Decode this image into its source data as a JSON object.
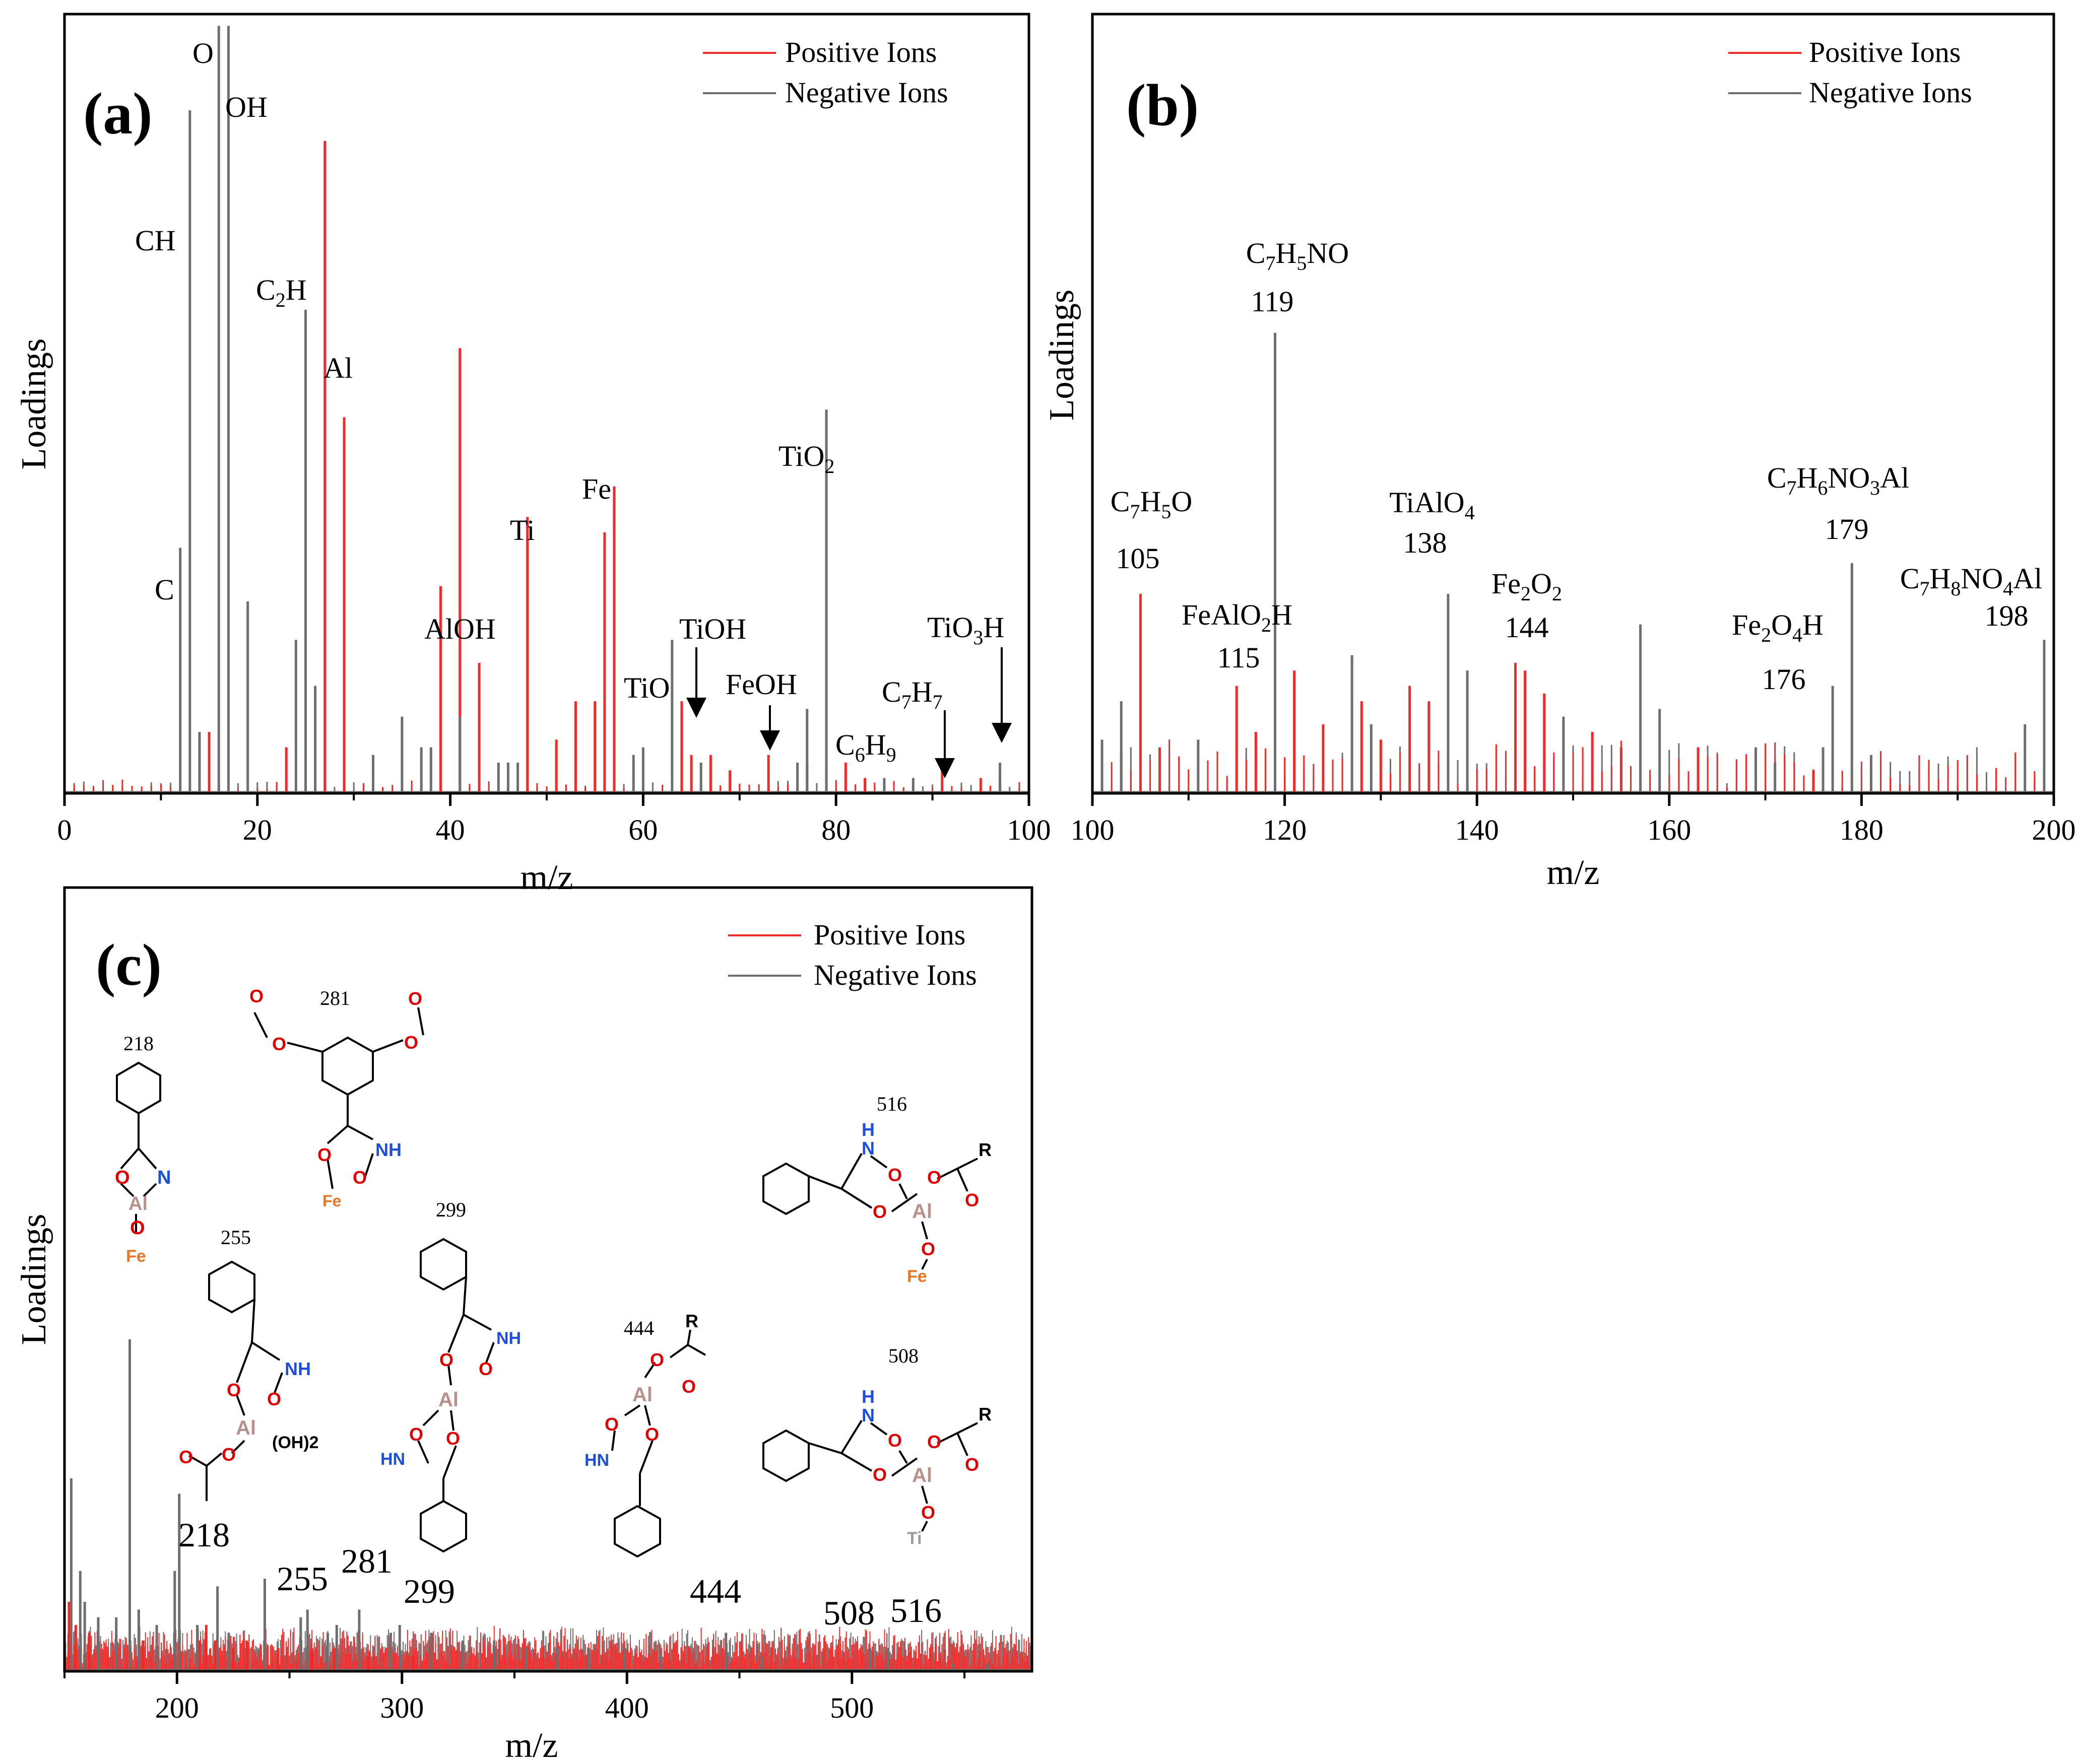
{
  "colors": {
    "positive": "#ee2b2b",
    "negative": "#6e6e6e",
    "axis": "#000000",
    "oxygen": "#e00000",
    "nitrogen": "#1f4fd8",
    "aluminium": "#b8918c",
    "iron": "#e67628",
    "titanium": "#9a9a9a"
  },
  "chart_data": [
    {
      "panel": "(a)",
      "type": "line",
      "xlabel": "m/z",
      "ylabel": "Loadings",
      "xlim": [
        0,
        100
      ],
      "ylim": [
        0,
        1.0
      ],
      "xticks": [
        "0",
        "20",
        "40",
        "60",
        "80",
        "100"
      ],
      "legend": {
        "position": "top-right",
        "entries": [
          "Positive Ions",
          "Negative Ions"
        ]
      },
      "series": [
        {
          "name": "Positive Ions",
          "x": [
            15,
            23,
            27,
            29,
            39,
            41,
            43,
            48,
            51,
            53,
            55,
            56,
            57,
            64,
            65,
            67,
            69,
            73,
            77,
            79,
            81,
            83,
            91,
            95,
            97
          ],
          "y": [
            0.08,
            0.06,
            0.85,
            0.49,
            0.27,
            0.58,
            0.17,
            0.36,
            0.07,
            0.12,
            0.12,
            0.34,
            0.4,
            0.12,
            0.05,
            0.05,
            0.03,
            0.05,
            0.04,
            0.04,
            0.04,
            0.02,
            0.03,
            0.02,
            0.02
          ]
        },
        {
          "name": "Negative Ions",
          "x": [
            12,
            13,
            14,
            16,
            17,
            19,
            24,
            25,
            26,
            32,
            35,
            37,
            38,
            41,
            45,
            46,
            47,
            59,
            60,
            63,
            66,
            76,
            77,
            79,
            85,
            88,
            97
          ],
          "y": [
            0.32,
            0.89,
            0.08,
            1.0,
            1.0,
            0.25,
            0.2,
            0.63,
            0.14,
            0.05,
            0.1,
            0.06,
            0.06,
            0.1,
            0.04,
            0.04,
            0.04,
            0.05,
            0.06,
            0.2,
            0.04,
            0.04,
            0.11,
            0.5,
            0.02,
            0.02,
            0.04
          ]
        }
      ],
      "annotations": [
        {
          "label": "C",
          "x": 12
        },
        {
          "label": "CH",
          "x": 13
        },
        {
          "label": "O",
          "x": 16
        },
        {
          "label": "OH",
          "x": 17
        },
        {
          "label": "C2H",
          "x": 25
        },
        {
          "label": "Al",
          "x": 27
        },
        {
          "label": "AlOH",
          "x": 44
        },
        {
          "label": "Ti",
          "x": 48
        },
        {
          "label": "Fe",
          "x": 56
        },
        {
          "label": "TiO",
          "x": 64
        },
        {
          "label": "TiOH",
          "x": 65
        },
        {
          "label": "FeOH",
          "x": 73
        },
        {
          "label": "TiO2",
          "x": 80
        },
        {
          "label": "C6H9",
          "x": 83
        },
        {
          "label": "C7H7",
          "x": 91
        },
        {
          "label": "TiO3H",
          "x": 97
        }
      ]
    },
    {
      "panel": "(b)",
      "type": "line",
      "xlabel": "m/z",
      "ylabel": "Loadings",
      "xlim": [
        100,
        200
      ],
      "ylim": [
        0,
        1.0
      ],
      "xticks": [
        "100",
        "120",
        "140",
        "160",
        "180",
        "200"
      ],
      "legend": {
        "position": "top-right",
        "entries": [
          "Positive Ions",
          "Negative Ions"
        ]
      },
      "series": [
        {
          "name": "Positive Ions",
          "x": [
            103,
            105,
            107,
            115,
            117,
            121,
            124,
            128,
            130,
            133,
            135,
            144,
            145,
            147,
            152,
            155,
            163,
            169,
            175,
            181
          ],
          "y": [
            0.05,
            0.26,
            0.06,
            0.14,
            0.08,
            0.16,
            0.09,
            0.12,
            0.07,
            0.14,
            0.12,
            0.17,
            0.16,
            0.13,
            0.08,
            0.06,
            0.06,
            0.03,
            0.03,
            0.03
          ]
        },
        {
          "name": "Negative Ions",
          "x": [
            101,
            103,
            111,
            119,
            127,
            129,
            137,
            139,
            149,
            157,
            159,
            169,
            171,
            176,
            177,
            179,
            181,
            197,
            199
          ],
          "y": [
            0.07,
            0.12,
            0.07,
            0.6,
            0.18,
            0.09,
            0.26,
            0.16,
            0.1,
            0.22,
            0.11,
            0.06,
            0.04,
            0.06,
            0.14,
            0.3,
            0.05,
            0.09,
            0.2
          ]
        }
      ],
      "annotations": [
        {
          "label": "C7H5O",
          "mass": "105"
        },
        {
          "label": "FeAlO2H",
          "mass": "115"
        },
        {
          "label": "C7H5NO",
          "mass": "119"
        },
        {
          "label": "TiAlO4",
          "mass": "138"
        },
        {
          "label": "Fe2O2",
          "mass": "144"
        },
        {
          "label": "Fe2O4H",
          "mass": "176"
        },
        {
          "label": "C7H6NO3Al",
          "mass": "179"
        },
        {
          "label": "C7H8NO4Al",
          "mass": "198"
        }
      ]
    },
    {
      "panel": "(c)",
      "type": "line",
      "xlabel": "m/z",
      "ylabel": "Loadings",
      "xlim": [
        150,
        580
      ],
      "ylim": [
        0,
        1.0
      ],
      "xticks": [
        "200",
        "300",
        "400",
        "500"
      ],
      "legend": {
        "position": "top-right",
        "entries": [
          "Positive Ions",
          "Negative Ions"
        ]
      },
      "series": [
        {
          "name": "Positive Ions",
          "x": [
            152,
            155,
            161,
            165,
            173,
            185,
            191,
            210,
            213,
            217,
            225,
            231,
            245,
            260,
            270,
            285,
            305
          ],
          "y": [
            0.09,
            0.06,
            0.05,
            0.07,
            0.05,
            0.04,
            0.05,
            0.04,
            0.06,
            0.04,
            0.03,
            0.04,
            0.03,
            0.03,
            0.03,
            0.02,
            0.02
          ]
        },
        {
          "name": "Negative Ions",
          "x": [
            153,
            157,
            159,
            165,
            173,
            179,
            183,
            191,
            199,
            201,
            209,
            218,
            223,
            239,
            255,
            258,
            267,
            271,
            281,
            295,
            299,
            313,
            327,
            341,
            355,
            369,
            383,
            399,
            415,
            444,
            460,
            508,
            516,
            545,
            560
          ],
          "y": [
            0.25,
            0.13,
            0.09,
            0.07,
            0.07,
            0.43,
            0.08,
            0.06,
            0.13,
            0.23,
            0.06,
            0.11,
            0.05,
            0.12,
            0.07,
            0.08,
            0.05,
            0.06,
            0.08,
            0.05,
            0.06,
            0.05,
            0.04,
            0.04,
            0.03,
            0.03,
            0.03,
            0.03,
            0.02,
            0.05,
            0.02,
            0.03,
            0.03,
            0.01,
            0.01
          ]
        }
      ],
      "annotations": [
        "218",
        "255",
        "281",
        "299",
        "444",
        "508",
        "516"
      ],
      "structures": [
        {
          "mass": "218",
          "atoms": [
            "O",
            "N",
            "Al",
            "O",
            "Fe"
          ]
        },
        {
          "mass": "281",
          "atoms": [
            "O",
            "O",
            "O",
            "O",
            "NH",
            "O",
            "O",
            "Fe"
          ]
        },
        {
          "mass": "255",
          "atoms": [
            "NH",
            "O",
            "O",
            "Al",
            "(OH)2",
            "O",
            "O"
          ]
        },
        {
          "mass": "299",
          "atoms": [
            "NH",
            "O",
            "O",
            "Al",
            "O",
            "O",
            "HN"
          ]
        },
        {
          "mass": "444",
          "atoms": [
            "R",
            "O",
            "O",
            "Al",
            "O",
            "O",
            "HN"
          ]
        },
        {
          "mass": "516",
          "atoms": [
            "H",
            "N",
            "O",
            "R",
            "O",
            "O",
            "O",
            "Al",
            "O",
            "Fe"
          ]
        },
        {
          "mass": "508",
          "atoms": [
            "H",
            "N",
            "O",
            "R",
            "O",
            "O",
            "O",
            "Al",
            "O",
            "Ti"
          ]
        }
      ]
    }
  ]
}
